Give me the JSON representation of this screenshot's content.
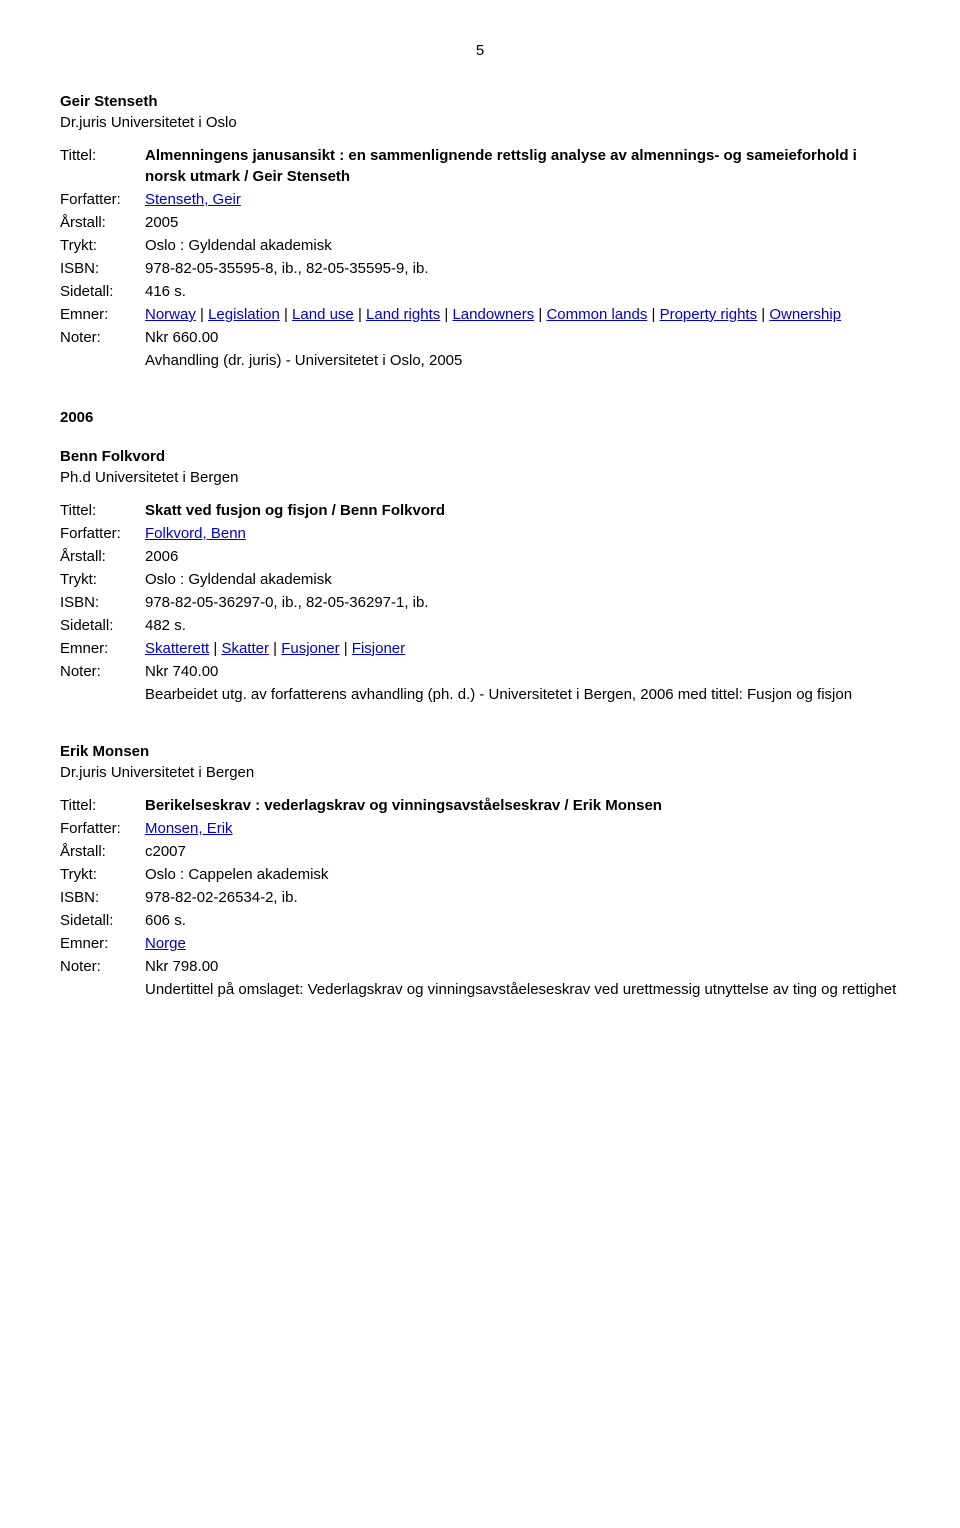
{
  "page_number": "5",
  "labels": {
    "title": "Tittel:",
    "author": "Forfatter:",
    "year": "Årstall:",
    "printed": "Trykt:",
    "isbn": "ISBN:",
    "pages": "Sidetall:",
    "subjects": "Emner:",
    "notes": "Noter:"
  },
  "year_2006": "2006",
  "entries": [
    {
      "author_name": "Geir Stenseth",
      "affiliation": "Dr.juris Universitetet i Oslo",
      "title": "Almenningens janusansikt : en sammenlignende rettslig analyse av almennings- og sameieforhold i norsk utmark / Geir Stenseth",
      "author_link": "Stenseth, Geir",
      "year": "2005",
      "printed": "Oslo : Gyldendal akademisk",
      "isbn": "978-82-05-35595-8, ib., 82-05-35595-9, ib.",
      "pages": "416 s.",
      "subjects_parts": [
        "Norway",
        "Legislation",
        "Land use",
        "Land rights",
        "Landowners",
        "Common lands",
        "Property rights",
        "Ownership"
      ],
      "notes_line1": "Nkr 660.00",
      "notes_line2": "Avhandling (dr. juris) - Universitetet i Oslo, 2005"
    },
    {
      "author_name": "Benn Folkvord",
      "affiliation": "Ph.d Universitetet i Bergen",
      "title": "Skatt ved fusjon og fisjon / Benn Folkvord",
      "author_link": "Folkvord, Benn",
      "year": "2006",
      "printed": "Oslo : Gyldendal akademisk",
      "isbn": "978-82-05-36297-0, ib., 82-05-36297-1, ib.",
      "pages": "482 s.",
      "subjects_parts": [
        "Skatterett",
        "Skatter",
        "Fusjoner",
        "Fisjoner"
      ],
      "notes_line1": "Nkr 740.00",
      "notes_line2": "Bearbeidet utg. av forfatterens avhandling (ph. d.) - Universitetet i Bergen, 2006 med tittel: Fusjon og fisjon"
    },
    {
      "author_name": "Erik Monsen",
      "affiliation": "Dr.juris Universitetet i Bergen",
      "title": "Berikelseskrav : vederlagskrav og vinningsavståelseskrav / Erik Monsen",
      "author_link": "Monsen, Erik",
      "year": "c2007",
      "printed": "Oslo : Cappelen akademisk",
      "isbn": "978-82-02-26534-2, ib.",
      "pages": "606 s.",
      "subjects_parts": [
        "Norge"
      ],
      "notes_line1": "Nkr 798.00",
      "notes_line2": "Undertittel på omslaget: Vederlagskrav og vinningsavståeleseskrav ved urettmessig utnyttelse av ting og rettighet"
    }
  ]
}
